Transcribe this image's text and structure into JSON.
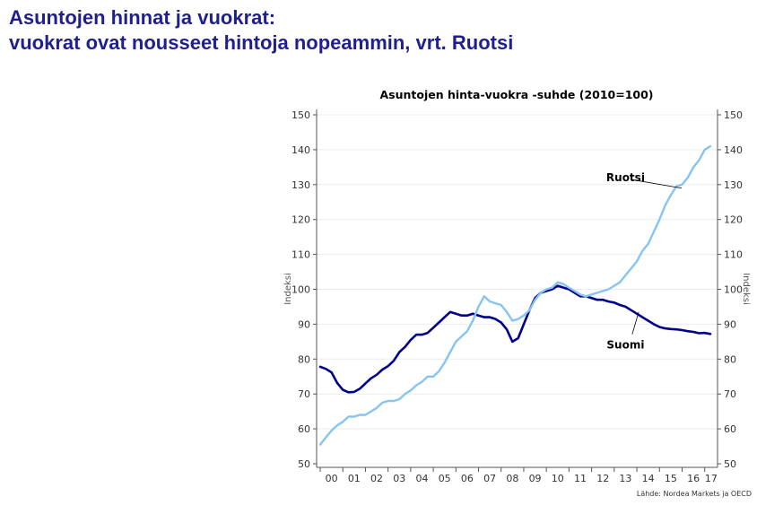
{
  "slide": {
    "title_line1": "Asuntojen hinnat ja vuokrat:",
    "title_line2": "vuokrat ovat nousseet hintoja nopeammin, vrt. Ruotsi"
  },
  "chart_data": {
    "type": "line",
    "title": "Asuntojen hinta-vuokra -suhde (2010=100)",
    "ylabel_left": "Indeksi",
    "ylabel_right": "Indeksi",
    "ylim": [
      50,
      150
    ],
    "yticks": [
      50,
      60,
      70,
      80,
      90,
      100,
      110,
      120,
      130,
      140,
      150
    ],
    "xlim": [
      2000.0,
      2017.25
    ],
    "xtick_labels": [
      "00",
      "01",
      "02",
      "03",
      "04",
      "05",
      "06",
      "07",
      "08",
      "09",
      "10",
      "11",
      "12",
      "13",
      "14",
      "15",
      "16",
      "17"
    ],
    "grid": true,
    "source": "Lähde: Nordea Markets ja OECD",
    "series": [
      {
        "name": "Suomi",
        "color": "#00008b",
        "x": [
          2000.0,
          2000.25,
          2000.5,
          2000.75,
          2001.0,
          2001.25,
          2001.5,
          2001.75,
          2002.0,
          2002.25,
          2002.5,
          2002.75,
          2003.0,
          2003.25,
          2003.5,
          2003.75,
          2004.0,
          2004.25,
          2004.5,
          2004.75,
          2005.0,
          2005.25,
          2005.5,
          2005.75,
          2006.0,
          2006.25,
          2006.5,
          2006.75,
          2007.0,
          2007.25,
          2007.5,
          2007.75,
          2008.0,
          2008.25,
          2008.5,
          2008.75,
          2009.0,
          2009.25,
          2009.5,
          2009.75,
          2010.0,
          2010.25,
          2010.5,
          2010.75,
          2011.0,
          2011.25,
          2011.5,
          2011.75,
          2012.0,
          2012.25,
          2012.5,
          2012.75,
          2013.0,
          2013.25,
          2013.5,
          2013.75,
          2014.0,
          2014.25,
          2014.5,
          2014.75,
          2015.0,
          2015.25,
          2015.5,
          2015.75,
          2016.0,
          2016.25,
          2016.5,
          2016.75,
          2017.0,
          2017.25
        ],
        "values": [
          77.8,
          77.2,
          76.2,
          73.2,
          71.2,
          70.5,
          70.6,
          71.5,
          73.0,
          74.5,
          75.5,
          77.0,
          78.0,
          79.5,
          82.0,
          83.5,
          85.5,
          87.0,
          87.0,
          87.5,
          89.0,
          90.5,
          92.0,
          93.5,
          93.0,
          92.5,
          92.5,
          93.0,
          92.5,
          92.0,
          92.0,
          91.5,
          90.5,
          88.5,
          85.0,
          86.0,
          90.0,
          94.0,
          97.5,
          99.0,
          99.5,
          100.0,
          101.0,
          100.5,
          100.0,
          99.0,
          98.0,
          98.0,
          97.5,
          97.0,
          97.0,
          96.5,
          96.2,
          95.5,
          95.0,
          94.0,
          93.0,
          92.0,
          91.0,
          90.0,
          89.2,
          88.8,
          88.6,
          88.5,
          88.3,
          88.0,
          87.8,
          87.4,
          87.5,
          87.2
        ]
      },
      {
        "name": "Ruotsi",
        "color": "#87c4f3",
        "x": [
          2000.0,
          2000.25,
          2000.5,
          2000.75,
          2001.0,
          2001.25,
          2001.5,
          2001.75,
          2002.0,
          2002.25,
          2002.5,
          2002.75,
          2003.0,
          2003.25,
          2003.5,
          2003.75,
          2004.0,
          2004.25,
          2004.5,
          2004.75,
          2005.0,
          2005.25,
          2005.5,
          2005.75,
          2006.0,
          2006.25,
          2006.5,
          2006.75,
          2007.0,
          2007.25,
          2007.5,
          2007.75,
          2008.0,
          2008.25,
          2008.5,
          2008.75,
          2009.0,
          2009.25,
          2009.5,
          2009.75,
          2010.0,
          2010.25,
          2010.5,
          2010.75,
          2011.0,
          2011.25,
          2011.5,
          2011.75,
          2012.0,
          2012.25,
          2012.5,
          2012.75,
          2013.0,
          2013.25,
          2013.5,
          2013.75,
          2014.0,
          2014.25,
          2014.5,
          2014.75,
          2015.0,
          2015.25,
          2015.5,
          2015.75,
          2016.0,
          2016.25,
          2016.5,
          2016.75,
          2017.0,
          2017.25
        ],
        "values": [
          55.5,
          57.5,
          59.5,
          61.0,
          62.0,
          63.5,
          63.5,
          64.0,
          64.0,
          65.0,
          66.0,
          67.5,
          68.0,
          68.0,
          68.5,
          70.0,
          71.0,
          72.5,
          73.5,
          75.0,
          75.0,
          76.5,
          79.0,
          82.0,
          85.0,
          86.5,
          88.0,
          91.0,
          95.0,
          98.0,
          96.5,
          96.0,
          95.5,
          93.5,
          91.0,
          91.5,
          92.5,
          94.0,
          97.0,
          99.0,
          100.0,
          100.5,
          102.0,
          101.5,
          100.5,
          99.5,
          98.5,
          98.0,
          98.5,
          99.0,
          99.5,
          100.0,
          101.0,
          102.0,
          104.0,
          106.0,
          108.0,
          111.0,
          113.0,
          116.5,
          120.0,
          124.0,
          127.0,
          129.5,
          130.0,
          132.0,
          135.0,
          137.0,
          140.0,
          141.0
        ]
      }
    ],
    "annotations": [
      {
        "text": "Ruotsi",
        "x": 2013.5,
        "y": 132
      },
      {
        "text": "Suomi",
        "x": 2013.5,
        "y": 84
      }
    ]
  }
}
